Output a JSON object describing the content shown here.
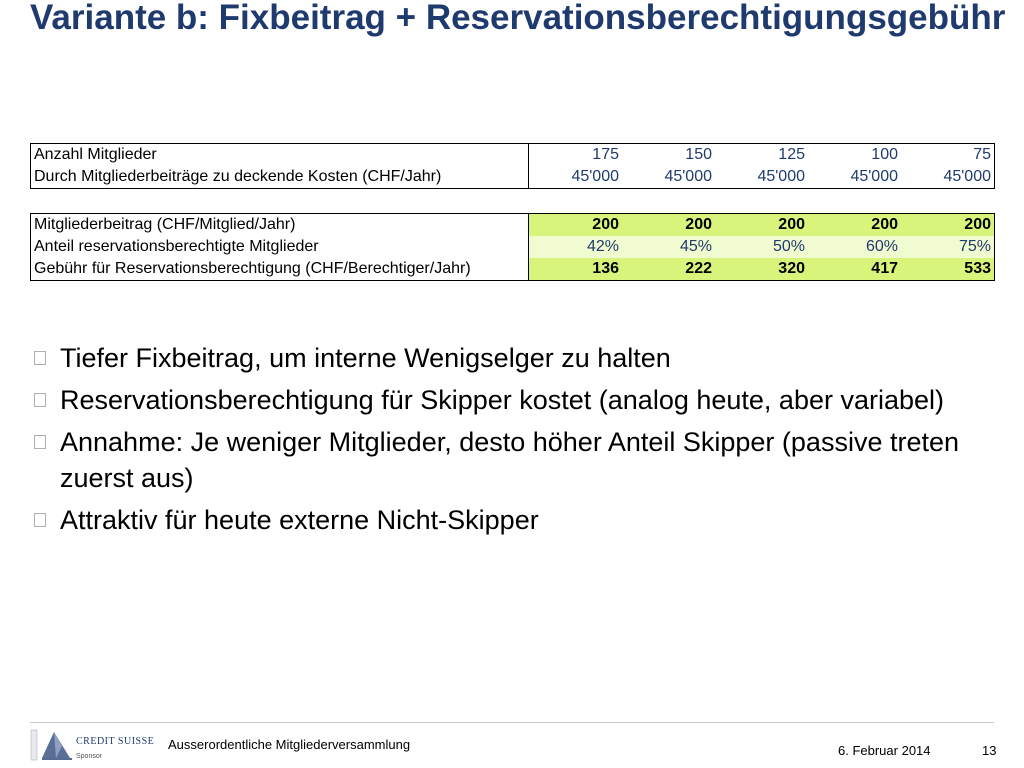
{
  "title": "Variante b: Fixbeitrag + Reservationsberechtigungsgebühr",
  "table1": {
    "rows": [
      {
        "label": "Anzahl Mitglieder",
        "values": [
          "175",
          "150",
          "125",
          "100",
          "75"
        ]
      },
      {
        "label": "Durch Mitgliederbeiträge zu deckende Kosten (CHF/Jahr)",
        "values": [
          "45'000",
          "45'000",
          "45'000",
          "45'000",
          "45'000"
        ]
      }
    ]
  },
  "table2": {
    "rows": [
      {
        "label": "Mitgliederbeitrag (CHF/Mitglied/Jahr)",
        "values": [
          "200",
          "200",
          "200",
          "200",
          "200"
        ]
      },
      {
        "label": "Anteil reservationsberechtigte Mitglieder",
        "values": [
          "42%",
          "45%",
          "50%",
          "60%",
          "75%"
        ]
      },
      {
        "label": "Gebühr für Reservationsberechtigung (CHF/Berechtiger/Jahr)",
        "values": [
          "136",
          "222",
          "320",
          "417",
          "533"
        ]
      }
    ]
  },
  "bullets": [
    "Tiefer Fixbeitrag, um interne Wenigselger zu halten",
    "Reservationsberechtigung für Skipper kostet (analog heute, aber variabel)",
    "Annahme: Je weniger Mitglieder, desto höher Anteil Skipper (passive treten zuerst aus)",
    "Attraktiv für heute externe Nicht-Skipper"
  ],
  "footer": {
    "logo_text": "CREDIT SUISSE",
    "logo_sub": "Sponsor",
    "text": "Ausserordentliche Mitgliederversammlung",
    "date": "6. Februar 2014",
    "page": "13"
  },
  "colors": {
    "title": "#1f3a6e",
    "highlight_green": "#d9f47a",
    "highlight_light_green": "#f1fbd0"
  }
}
